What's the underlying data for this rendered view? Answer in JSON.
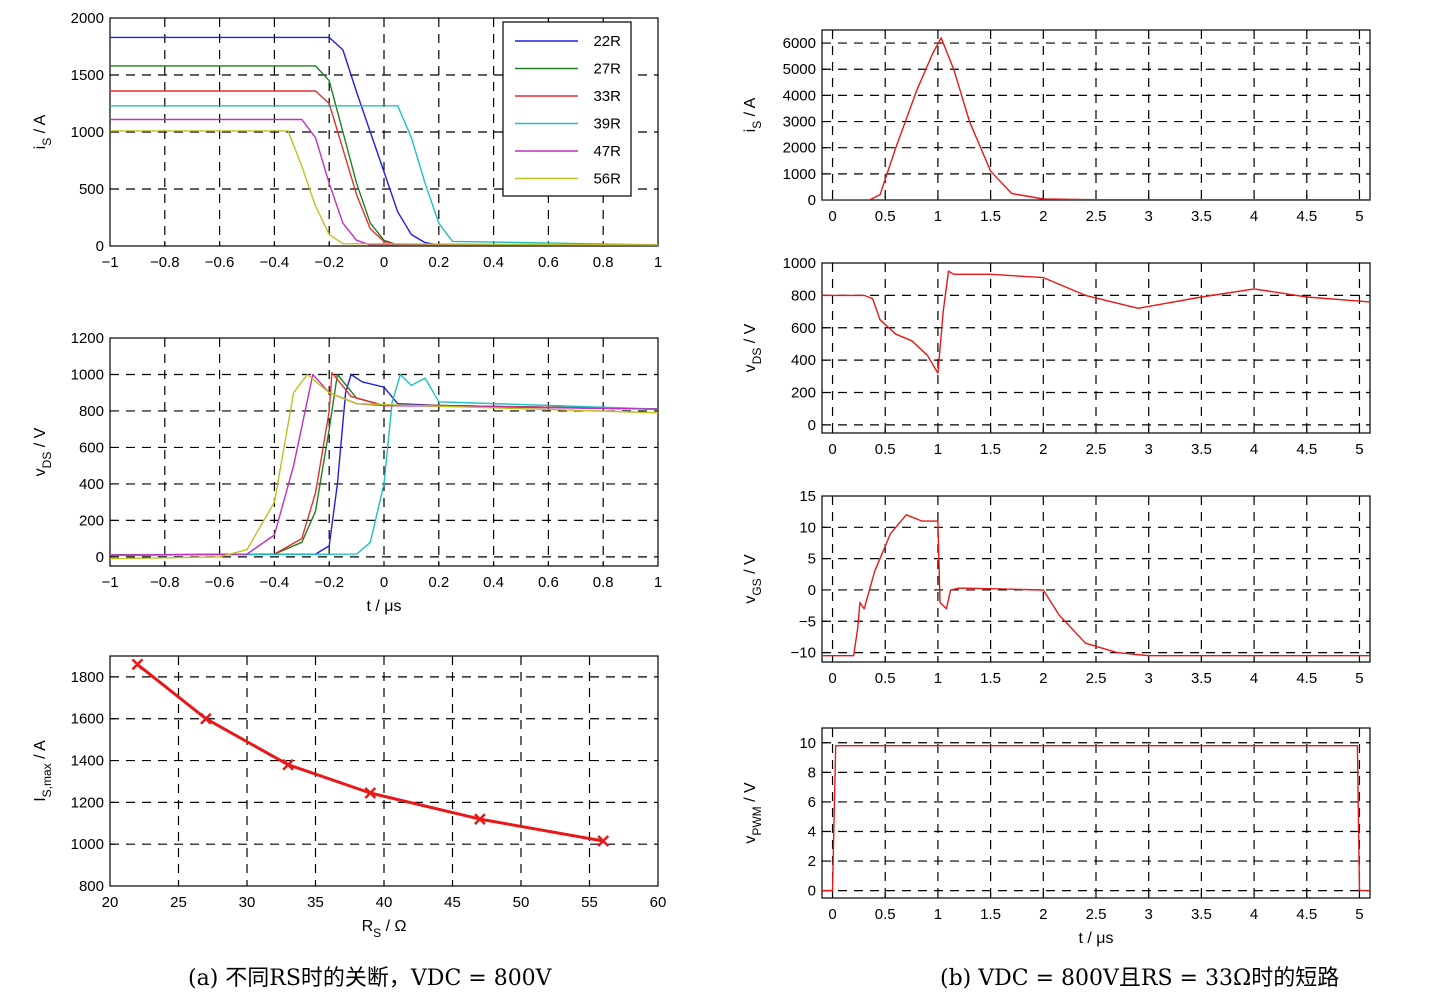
{
  "captions": {
    "a": "(a)  不同RS时的关断，VDC = 800V",
    "b": "(b)  VDC = 800V且RS = 33Ω时的短路"
  },
  "colors": {
    "22R": "#2020e0",
    "27R": "#208020",
    "33R": "#e03030",
    "39R": "#20c0c0",
    "47R": "#c030c0",
    "56R": "#c0c020",
    "red": "#e81818"
  },
  "chart_data": [
    {
      "id": "is_turnoff",
      "type": "line",
      "ylabel": "iS / A",
      "xlabel": "",
      "xlim": [
        -1,
        1
      ],
      "ylim": [
        0,
        2000
      ],
      "xticks": [
        "-1",
        "-0.8",
        "-0.6",
        "-0.4",
        "-0.2",
        "0",
        "0.2",
        "0.4",
        "0.6",
        "0.8",
        "1"
      ],
      "yticks": [
        "0",
        "500",
        "1000",
        "1500",
        "2000"
      ],
      "grid": true,
      "legend_position": "top-right",
      "series": [
        {
          "name": "22R",
          "x": [
            -1,
            -0.2,
            -0.15,
            -0.1,
            -0.05,
            0,
            0.05,
            0.1,
            0.15,
            0.2,
            1
          ],
          "y": [
            1830,
            1830,
            1720,
            1350,
            1000,
            650,
            300,
            100,
            30,
            10,
            10
          ]
        },
        {
          "name": "27R",
          "x": [
            -1,
            -0.25,
            -0.2,
            -0.15,
            -0.1,
            -0.05,
            0,
            0.05,
            1
          ],
          "y": [
            1580,
            1580,
            1450,
            1000,
            550,
            200,
            50,
            10,
            10
          ]
        },
        {
          "name": "33R",
          "x": [
            -1,
            -0.25,
            -0.2,
            -0.15,
            -0.1,
            -0.05,
            0,
            0.05,
            1
          ],
          "y": [
            1360,
            1360,
            1250,
            850,
            450,
            150,
            40,
            10,
            10
          ]
        },
        {
          "name": "39R",
          "x": [
            -1,
            0.05,
            0.1,
            0.15,
            0.2,
            0.25,
            1
          ],
          "y": [
            1230,
            1230,
            950,
            550,
            200,
            40,
            10
          ]
        },
        {
          "name": "47R",
          "x": [
            -1,
            -0.3,
            -0.25,
            -0.2,
            -0.15,
            -0.1,
            -0.05,
            1
          ],
          "y": [
            1110,
            1110,
            950,
            550,
            200,
            50,
            10,
            10
          ]
        },
        {
          "name": "56R",
          "x": [
            -1,
            -0.35,
            -0.3,
            -0.25,
            -0.2,
            -0.15,
            1
          ],
          "y": [
            1010,
            1010,
            700,
            350,
            100,
            20,
            10
          ]
        }
      ]
    },
    {
      "id": "vds_turnoff",
      "type": "line",
      "ylabel": "vDS / V",
      "xlabel": "t / μs",
      "xlim": [
        -1,
        1
      ],
      "ylim": [
        -50,
        1200
      ],
      "xticks": [
        "-1",
        "-0.8",
        "-0.6",
        "-0.4",
        "-0.2",
        "0",
        "0.2",
        "0.4",
        "0.6",
        "0.8",
        "1"
      ],
      "yticks": [
        "0",
        "200",
        "400",
        "600",
        "800",
        "1000",
        "1200"
      ],
      "grid": true,
      "series": [
        {
          "name": "22R",
          "x": [
            -1,
            -0.25,
            -0.2,
            -0.17,
            -0.14,
            -0.12,
            -0.08,
            0,
            0.05,
            0.2,
            1
          ],
          "y": [
            10,
            15,
            60,
            400,
            900,
            1000,
            960,
            930,
            840,
            830,
            810
          ]
        },
        {
          "name": "27R",
          "x": [
            -1,
            -0.4,
            -0.3,
            -0.25,
            -0.2,
            -0.17,
            -0.1,
            0,
            0.2,
            1
          ],
          "y": [
            10,
            15,
            80,
            250,
            700,
            1000,
            870,
            830,
            830,
            810
          ]
        },
        {
          "name": "33R",
          "x": [
            -1,
            -0.4,
            -0.3,
            -0.25,
            -0.2,
            -0.19,
            -0.12,
            0,
            0.2,
            1
          ],
          "y": [
            10,
            15,
            100,
            350,
            800,
            1010,
            880,
            830,
            830,
            810
          ]
        },
        {
          "name": "39R",
          "x": [
            -1,
            -0.1,
            -0.05,
            0,
            0.03,
            0.06,
            0.1,
            0.15,
            0.2,
            1
          ],
          "y": [
            10,
            15,
            80,
            400,
            850,
            1000,
            940,
            980,
            850,
            810
          ]
        },
        {
          "name": "47R",
          "x": [
            -1,
            -0.5,
            -0.4,
            -0.33,
            -0.26,
            -0.2,
            -0.1,
            0,
            1
          ],
          "y": [
            10,
            15,
            120,
            500,
            1000,
            900,
            840,
            830,
            810
          ]
        },
        {
          "name": "56R",
          "x": [
            -1,
            -0.6,
            -0.5,
            -0.4,
            -0.33,
            -0.28,
            -0.2,
            -0.1,
            1
          ],
          "y": [
            -10,
            0,
            40,
            300,
            900,
            1000,
            900,
            840,
            790
          ]
        }
      ]
    },
    {
      "id": "is_max_vs_rs",
      "type": "line",
      "ylabel": "IS,max / A",
      "xlabel": "RS / Ω",
      "xlim": [
        20,
        60
      ],
      "ylim": [
        800,
        1900
      ],
      "xticks": [
        "20",
        "25",
        "30",
        "35",
        "40",
        "45",
        "50",
        "55",
        "60"
      ],
      "yticks": [
        "800",
        "1000",
        "1200",
        "1400",
        "1600",
        "1800"
      ],
      "grid": true,
      "series": [
        {
          "name": "IS,max",
          "x": [
            22,
            27,
            33,
            39,
            47,
            56
          ],
          "y": [
            1860,
            1600,
            1380,
            1245,
            1120,
            1015
          ],
          "marker": "x"
        }
      ]
    },
    {
      "id": "is_short",
      "type": "line",
      "ylabel": "iS / A",
      "xlabel": "",
      "xlim": [
        -0.1,
        5.1
      ],
      "ylim": [
        0,
        6500
      ],
      "xticks": [
        "0",
        "0.5",
        "1",
        "1.5",
        "2",
        "2.5",
        "3",
        "3.5",
        "4",
        "4.5",
        "5"
      ],
      "yticks": [
        "0",
        "1000",
        "2000",
        "3000",
        "4000",
        "5000",
        "6000"
      ],
      "grid": true,
      "series": [
        {
          "name": "iS",
          "x": [
            -0.1,
            0.35,
            0.45,
            0.6,
            0.8,
            0.95,
            1.03,
            1.15,
            1.3,
            1.5,
            1.7,
            2.0,
            2.5,
            5.1
          ],
          "y": [
            0,
            0,
            200,
            2000,
            4200,
            5600,
            6200,
            5000,
            3000,
            1100,
            250,
            40,
            10,
            10
          ]
        }
      ]
    },
    {
      "id": "vds_short",
      "type": "line",
      "ylabel": "vDS / V",
      "xlabel": "",
      "xlim": [
        -0.1,
        5.1
      ],
      "ylim": [
        -50,
        1000
      ],
      "xticks": [
        "0",
        "0.5",
        "1",
        "1.5",
        "2",
        "2.5",
        "3",
        "3.5",
        "4",
        "4.5",
        "5"
      ],
      "yticks": [
        "0",
        "200",
        "400",
        "600",
        "800",
        "1000"
      ],
      "grid": true,
      "series": [
        {
          "name": "vDS",
          "x": [
            -0.1,
            0.3,
            0.38,
            0.45,
            0.6,
            0.75,
            0.9,
            1.0,
            1.05,
            1.1,
            1.15,
            1.5,
            2.0,
            2.4,
            2.9,
            3.5,
            4.0,
            4.5,
            5.1
          ],
          "y": [
            800,
            800,
            780,
            650,
            560,
            520,
            430,
            320,
            700,
            950,
            930,
            930,
            910,
            800,
            720,
            790,
            840,
            790,
            760
          ]
        }
      ]
    },
    {
      "id": "vgs_short",
      "type": "line",
      "ylabel": "vGS / V",
      "xlabel": "",
      "xlim": [
        -0.1,
        5.1
      ],
      "ylim": [
        -11.5,
        15
      ],
      "xticks": [
        "0",
        "0.5",
        "1",
        "1.5",
        "2",
        "2.5",
        "3",
        "3.5",
        "4",
        "4.5",
        "5"
      ],
      "yticks": [
        "-10",
        "-5",
        "0",
        "5",
        "10",
        "15"
      ],
      "grid": true,
      "series": [
        {
          "name": "vGS",
          "x": [
            -0.1,
            0.2,
            0.24,
            0.26,
            0.3,
            0.4,
            0.55,
            0.7,
            0.85,
            1.0,
            1.02,
            1.08,
            1.12,
            1.2,
            1.5,
            2.0,
            2.15,
            2.4,
            2.7,
            3.0,
            5.1
          ],
          "y": [
            -10.5,
            -10.5,
            -6,
            -2,
            -3,
            3,
            9,
            12,
            11,
            11,
            -2,
            -3,
            0,
            0.3,
            0.2,
            0,
            -4,
            -8.5,
            -10,
            -10.5,
            -10.5
          ]
        }
      ]
    },
    {
      "id": "vpwm_short",
      "type": "line",
      "ylabel": "vPWM / V",
      "xlabel": "t / μs",
      "xlim": [
        -0.1,
        5.1
      ],
      "ylim": [
        -0.5,
        11
      ],
      "xticks": [
        "0",
        "0.5",
        "1",
        "1.5",
        "2",
        "2.5",
        "3",
        "3.5",
        "4",
        "4.5",
        "5"
      ],
      "yticks": [
        "0",
        "2",
        "4",
        "6",
        "8",
        "10"
      ],
      "grid": true,
      "series": [
        {
          "name": "vPWM",
          "x": [
            -0.1,
            0,
            0.03,
            0.06,
            4.95,
            4.98,
            5.0,
            5.1
          ],
          "y": [
            0,
            0,
            9.8,
            9.8,
            9.8,
            9.8,
            0,
            0
          ]
        }
      ]
    }
  ]
}
